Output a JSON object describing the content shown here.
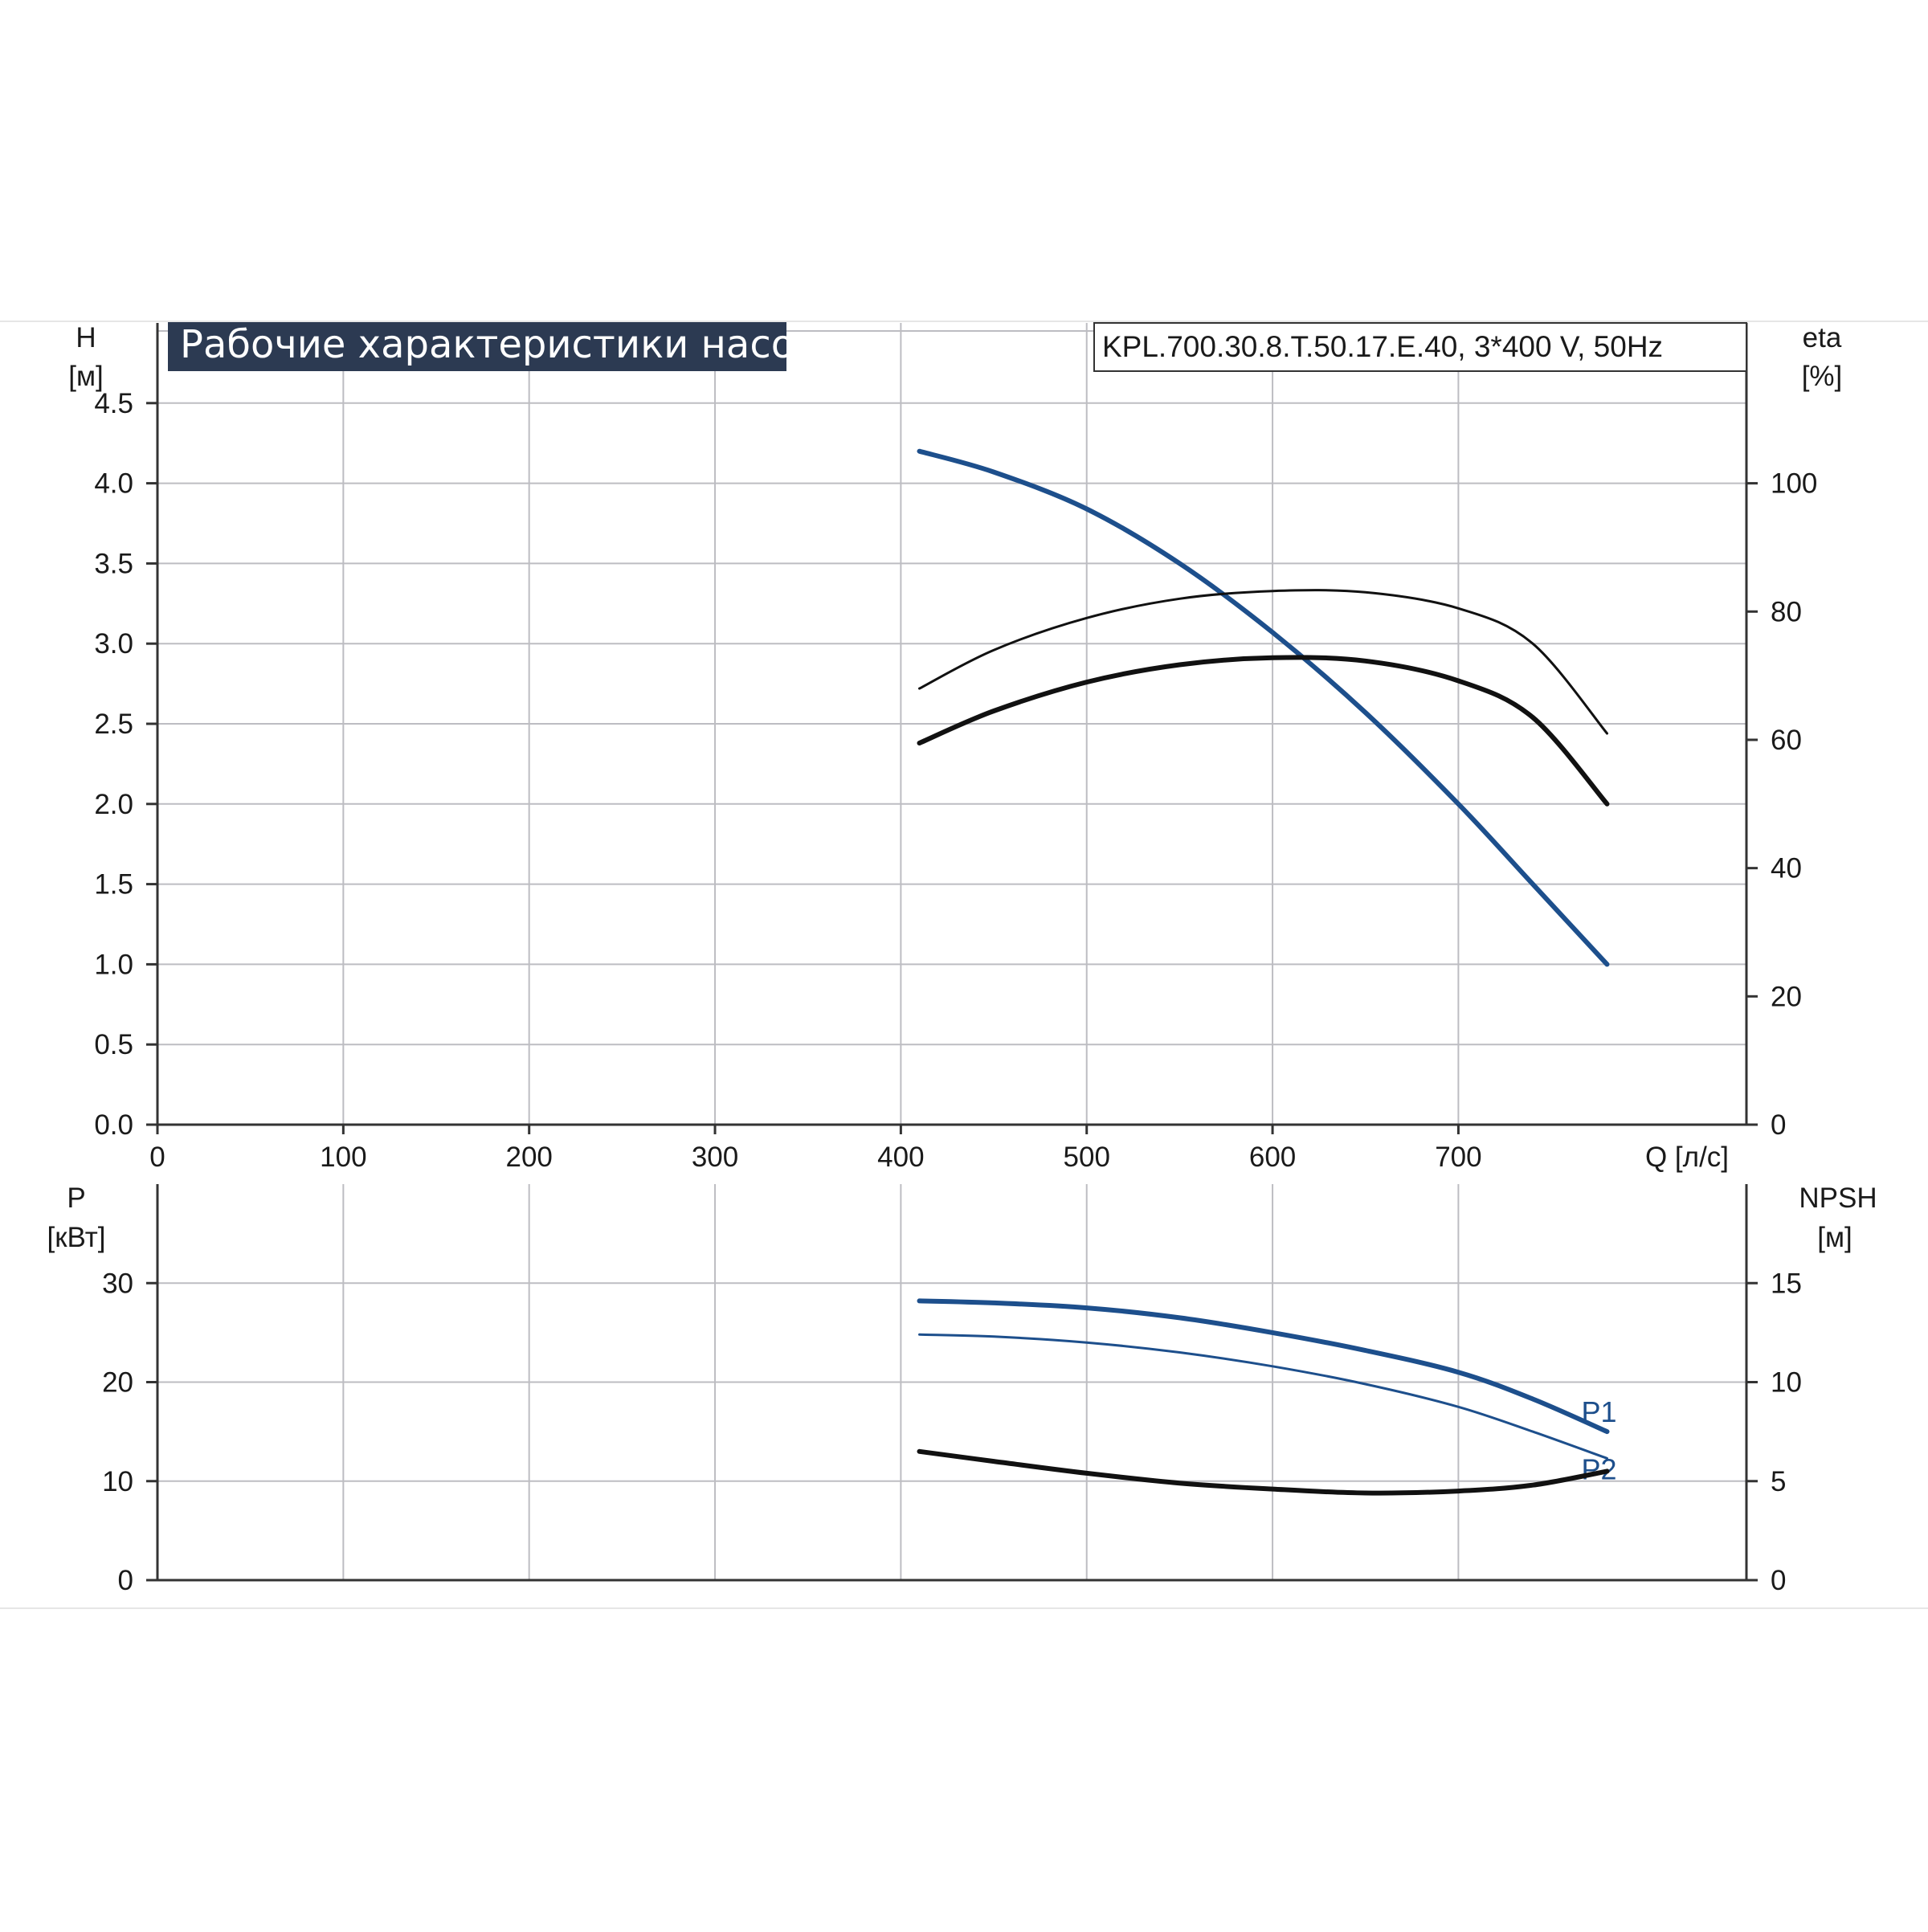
{
  "colors": {
    "background": "#ffffff",
    "grid": "#bdbdc2",
    "axis": "#333333",
    "title_box": "#2c3a52",
    "blue": "#1d4f8c",
    "black": "#111111"
  },
  "chart_data": [
    {
      "type": "line",
      "title": "Рабочие характеристики насоса",
      "model": "KPL.700.30.8.T.50.17.E.40, 3*400 V, 50Hz",
      "x_axis": {
        "label": "Q [л/с]",
        "range": [
          0,
          855
        ],
        "ticks": [
          0,
          100,
          200,
          300,
          400,
          500,
          600,
          700
        ],
        "tick_labels": [
          "0",
          "100",
          "200",
          "300",
          "400",
          "500",
          "600",
          "700"
        ]
      },
      "y_left": {
        "label_line1": "H",
        "label_line2": "[м]",
        "range": [
          0,
          5.0
        ],
        "ticks": [
          0.0,
          0.5,
          1.0,
          1.5,
          2.0,
          2.5,
          3.0,
          3.5,
          4.0,
          4.5
        ],
        "tick_labels": [
          "0.0",
          "0.5",
          "1.0",
          "1.5",
          "2.0",
          "2.5",
          "3.0",
          "3.5",
          "4.0",
          "4.5"
        ]
      },
      "y_right": {
        "label_line1": "eta",
        "label_line2": "[%]",
        "range": [
          0,
          125
        ],
        "ticks": [
          0,
          20,
          40,
          60,
          80,
          100
        ],
        "tick_labels": [
          "0",
          "20",
          "40",
          "60",
          "80",
          "100"
        ]
      },
      "grid": true,
      "series": [
        {
          "axis": "left",
          "color": "#1d4f8c",
          "width": 6,
          "x": [
            410,
            450,
            500,
            550,
            600,
            650,
            700,
            740,
            780
          ],
          "y": [
            4.2,
            4.07,
            3.84,
            3.5,
            3.07,
            2.57,
            2.0,
            1.5,
            1.0
          ]
        },
        {
          "axis": "right",
          "color": "#111111",
          "width": 3,
          "x": [
            410,
            450,
            500,
            550,
            600,
            650,
            700,
            740,
            780
          ],
          "y": [
            68,
            74,
            79,
            82,
            83.2,
            83,
            80.5,
            75,
            61
          ]
        },
        {
          "axis": "right",
          "color": "#111111",
          "width": 6,
          "x": [
            410,
            450,
            500,
            550,
            600,
            650,
            700,
            740,
            780
          ],
          "y": [
            59.5,
            64.5,
            69,
            71.7,
            72.8,
            72.3,
            69.2,
            63.5,
            50
          ]
        }
      ]
    },
    {
      "type": "line",
      "x_axis": {
        "range": [
          0,
          855
        ],
        "ticks": [
          0,
          100,
          200,
          300,
          400,
          500,
          600,
          700
        ]
      },
      "y_left": {
        "label_line1": "P",
        "label_line2": "[кВт]",
        "range": [
          0,
          40
        ],
        "ticks": [
          0,
          10,
          20,
          30
        ],
        "tick_labels": [
          "0",
          "10",
          "20",
          "30"
        ]
      },
      "y_right": {
        "label_line1": "NPSH",
        "label_line2": "[м]",
        "range": [
          0,
          20
        ],
        "ticks": [
          0,
          5,
          10,
          15
        ],
        "tick_labels": [
          "0",
          "5",
          "10",
          "15"
        ]
      },
      "grid": true,
      "series": [
        {
          "name": "P1",
          "axis": "left",
          "color": "#1d4f8c",
          "width": 6,
          "x": [
            410,
            450,
            500,
            550,
            600,
            650,
            700,
            740,
            780
          ],
          "y": [
            28.2,
            28.0,
            27.5,
            26.5,
            25.0,
            23.2,
            21.0,
            18.3,
            15.0
          ]
        },
        {
          "name": "P2",
          "axis": "left",
          "color": "#1d4f8c",
          "width": 3,
          "x": [
            410,
            450,
            500,
            550,
            600,
            650,
            700,
            740,
            780
          ],
          "y": [
            24.8,
            24.6,
            24.0,
            23.0,
            21.6,
            19.8,
            17.5,
            15.0,
            12.3
          ]
        },
        {
          "axis": "right",
          "color": "#111111",
          "width": 6,
          "x": [
            410,
            450,
            500,
            550,
            600,
            650,
            700,
            740,
            780
          ],
          "y": [
            6.5,
            6.0,
            5.4,
            4.9,
            4.6,
            4.4,
            4.5,
            4.8,
            5.5
          ]
        }
      ]
    }
  ]
}
